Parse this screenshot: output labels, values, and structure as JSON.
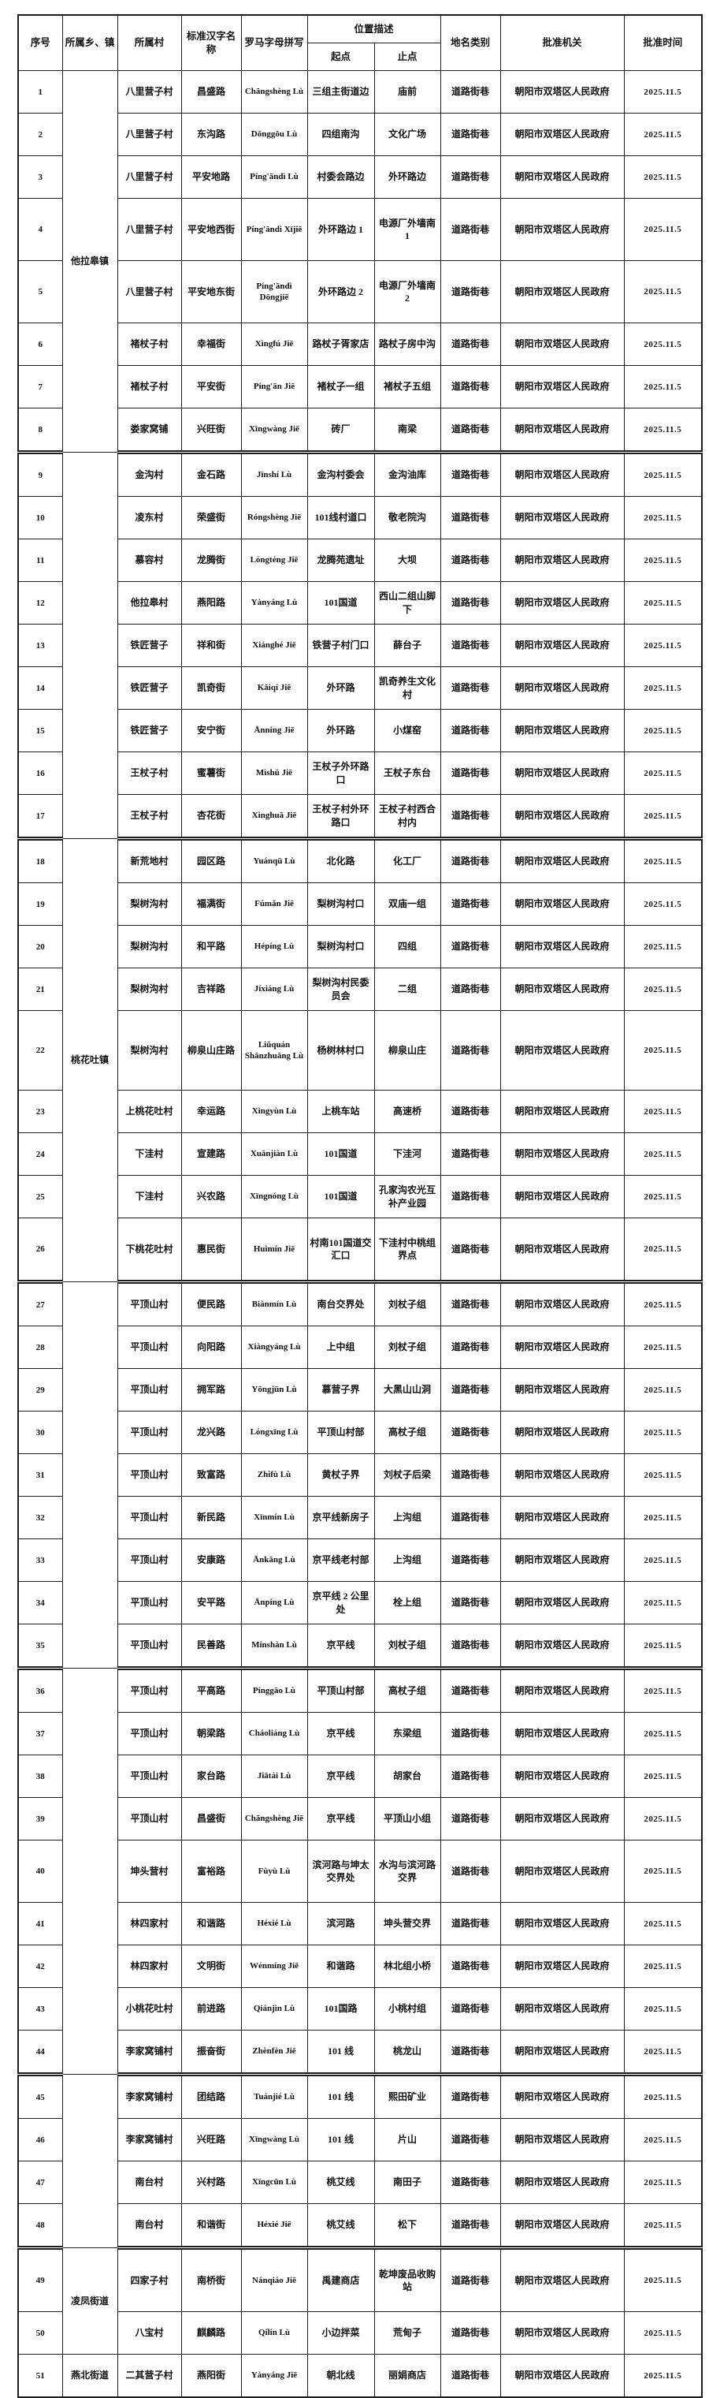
{
  "document": {
    "type": "place-name approval table",
    "category_value": "道路街巷",
    "authority_value": "朝阳市双塔区人民政府",
    "date_value": "2025.11.5"
  },
  "header": {
    "col_no": "序号",
    "col_township": "所属乡、镇",
    "col_village": "所属村",
    "col_name": "标准汉字名称",
    "col_pinyin": "罗马字母拼写",
    "col_location": "位置描述",
    "col_start": "起点",
    "col_end": "止点",
    "col_category": "地名类别",
    "col_authority": "批准机关",
    "col_date": "批准时间"
  },
  "townships": [
    {
      "label": "他拉皋镇",
      "from": 1,
      "to": 8
    },
    {
      "label": "",
      "from": 9,
      "to": 17
    },
    {
      "label": "桃花吐镇",
      "from": 18,
      "to": 26
    },
    {
      "label": "",
      "from": 27,
      "to": 35
    },
    {
      "label": "",
      "from": 36,
      "to": 44
    },
    {
      "label": "",
      "from": 45,
      "to": 48
    },
    {
      "label": "凌凤街道",
      "from": 49,
      "to": 50
    },
    {
      "label": "燕北街道",
      "from": 51,
      "to": 51
    }
  ],
  "group_breaks_after": [
    8,
    17,
    26,
    35,
    44,
    48
  ],
  "rows": [
    {
      "no": "1",
      "village": "八里营子村",
      "name": "昌盛路",
      "pinyin": "Chāngshèng Lù",
      "start": "三组主街道边",
      "end": "庙前",
      "category": "道路街巷",
      "authority": "朝阳市双塔区人民政府",
      "date": "2025.11.5"
    },
    {
      "no": "2",
      "village": "八里营子村",
      "name": "东沟路",
      "pinyin": "Dōnggōu Lù",
      "start": "四组南沟",
      "end": "文化广场",
      "category": "道路街巷",
      "authority": "朝阳市双塔区人民政府",
      "date": "2025.11.5"
    },
    {
      "no": "3",
      "village": "八里营子村",
      "name": "平安地路",
      "pinyin": "Píng'āndì Lù",
      "start": "村委会路边",
      "end": "外环路边",
      "category": "道路街巷",
      "authority": "朝阳市双塔区人民政府",
      "date": "2025.11.5"
    },
    {
      "no": "4",
      "village": "八里营子村",
      "name": "平安地西街",
      "pinyin": "Píng'āndì Xījiē",
      "start": "外环路边 1",
      "end": "电源厂外墙南 1",
      "category": "道路街巷",
      "authority": "朝阳市双塔区人民政府",
      "date": "2025.11.5"
    },
    {
      "no": "5",
      "village": "八里营子村",
      "name": "平安地东街",
      "pinyin": "Píng'āndì Dōngjiē",
      "start": "外环路边 2",
      "end": "电源厂外墙南 2",
      "category": "道路街巷",
      "authority": "朝阳市双塔区人民政府",
      "date": "2025.11.5"
    },
    {
      "no": "6",
      "village": "褚杖子村",
      "name": "幸福街",
      "pinyin": "Xìngfú Jiē",
      "start": "路杖子胥家店",
      "end": "路杖子房中沟",
      "category": "道路街巷",
      "authority": "朝阳市双塔区人民政府",
      "date": "2025.11.5"
    },
    {
      "no": "7",
      "village": "褚杖子村",
      "name": "平安街",
      "pinyin": "Píng'ān Jiē",
      "start": "褚杖子一组",
      "end": "褚杖子五组",
      "category": "道路街巷",
      "authority": "朝阳市双塔区人民政府",
      "date": "2025.11.5"
    },
    {
      "no": "8",
      "village": "娄家窝铺",
      "name": "兴旺街",
      "pinyin": "Xīngwàng Jiē",
      "start": "砖厂",
      "end": "南梁",
      "category": "道路街巷",
      "authority": "朝阳市双塔区人民政府",
      "date": "2025.11.5"
    },
    {
      "no": "9",
      "village": "金沟村",
      "name": "金石路",
      "pinyin": "Jīnshí Lù",
      "start": "金沟村委会",
      "end": "金沟油库",
      "category": "道路街巷",
      "authority": "朝阳市双塔区人民政府",
      "date": "2025.11.5"
    },
    {
      "no": "10",
      "village": "凌东村",
      "name": "荣盛街",
      "pinyin": "Róngshèng Jiē",
      "start": "101线村道口",
      "end": "敬老院沟",
      "category": "道路街巷",
      "authority": "朝阳市双塔区人民政府",
      "date": "2025.11.5"
    },
    {
      "no": "11",
      "village": "慕容村",
      "name": "龙腾街",
      "pinyin": "Lóngténg Jiē",
      "start": "龙腾苑遗址",
      "end": "大坝",
      "category": "道路街巷",
      "authority": "朝阳市双塔区人民政府",
      "date": "2025.11.5"
    },
    {
      "no": "12",
      "village": "他拉皋村",
      "name": "燕阳路",
      "pinyin": "Yànyáng Lù",
      "start": "101国道",
      "end": "西山二组山脚下",
      "category": "道路街巷",
      "authority": "朝阳市双塔区人民政府",
      "date": "2025.11.5"
    },
    {
      "no": "13",
      "village": "铁匠营子",
      "name": "祥和街",
      "pinyin": "Xiánghé Jiē",
      "start": "铁营子村门口",
      "end": "薛台子",
      "category": "道路街巷",
      "authority": "朝阳市双塔区人民政府",
      "date": "2025.11.5"
    },
    {
      "no": "14",
      "village": "铁匠营子",
      "name": "凯奇街",
      "pinyin": "Kǎiqí Jiē",
      "start": "外环路",
      "end": "凯奇养生文化村",
      "category": "道路街巷",
      "authority": "朝阳市双塔区人民政府",
      "date": "2025.11.5"
    },
    {
      "no": "15",
      "village": "铁匠营子",
      "name": "安宁街",
      "pinyin": "Ānníng Jiē",
      "start": "外环路",
      "end": "小煤窑",
      "category": "道路街巷",
      "authority": "朝阳市双塔区人民政府",
      "date": "2025.11.5"
    },
    {
      "no": "16",
      "village": "王杖子村",
      "name": "蜜薯街",
      "pinyin": "Mìshǔ Jiē",
      "start": "王杖子外环路口",
      "end": "王杖子东台",
      "category": "道路街巷",
      "authority": "朝阳市双塔区人民政府",
      "date": "2025.11.5"
    },
    {
      "no": "17",
      "village": "王杖子村",
      "name": "杏花街",
      "pinyin": "Xìnghuā Jiē",
      "start": "王杖子村外环路口",
      "end": "王杖子村西合村内",
      "category": "道路街巷",
      "authority": "朝阳市双塔区人民政府",
      "date": "2025.11.5"
    },
    {
      "no": "18",
      "village": "新荒地村",
      "name": "园区路",
      "pinyin": "Yuánqū Lù",
      "start": "北化路",
      "end": "化工厂",
      "category": "道路街巷",
      "authority": "朝阳市双塔区人民政府",
      "date": "2025.11.5"
    },
    {
      "no": "19",
      "village": "梨树沟村",
      "name": "福满街",
      "pinyin": "Fúmǎn Jiē",
      "start": "梨树沟村口",
      "end": "双庙一组",
      "category": "道路街巷",
      "authority": "朝阳市双塔区人民政府",
      "date": "2025.11.5"
    },
    {
      "no": "20",
      "village": "梨树沟村",
      "name": "和平路",
      "pinyin": "Hépíng Lù",
      "start": "梨树沟村口",
      "end": "四组",
      "category": "道路街巷",
      "authority": "朝阳市双塔区人民政府",
      "date": "2025.11.5"
    },
    {
      "no": "21",
      "village": "梨树沟村",
      "name": "吉祥路",
      "pinyin": "Jíxiáng Lù",
      "start": "梨树沟村民委员会",
      "end": "二组",
      "category": "道路街巷",
      "authority": "朝阳市双塔区人民政府",
      "date": "2025.11.5"
    },
    {
      "no": "22",
      "village": "梨树沟村",
      "name": "柳泉山庄路",
      "pinyin": "Liǔquán Shānzhuāng Lù",
      "start": "杨树林村口",
      "end": "柳泉山庄",
      "category": "道路街巷",
      "authority": "朝阳市双塔区人民政府",
      "date": "2025.11.5"
    },
    {
      "no": "23",
      "village": "上桃花吐村",
      "name": "幸运路",
      "pinyin": "Xìngyùn Lù",
      "start": "上桃车站",
      "end": "高速桥",
      "category": "道路街巷",
      "authority": "朝阳市双塔区人民政府",
      "date": "2025.11.5"
    },
    {
      "no": "24",
      "village": "下洼村",
      "name": "宣建路",
      "pinyin": "Xuānjiàn Lù",
      "start": "101国道",
      "end": "下洼河",
      "category": "道路街巷",
      "authority": "朝阳市双塔区人民政府",
      "date": "2025.11.5"
    },
    {
      "no": "25",
      "village": "下洼村",
      "name": "兴农路",
      "pinyin": "Xīngnóng Lù",
      "start": "101国道",
      "end": "孔家沟农光互补产业园",
      "category": "道路街巷",
      "authority": "朝阳市双塔区人民政府",
      "date": "2025.11.5"
    },
    {
      "no": "26",
      "village": "下桃花吐村",
      "name": "惠民街",
      "pinyin": "Huìmín Jiē",
      "start": "村南101国道交汇口",
      "end": "下洼村中桃组界点",
      "category": "道路街巷",
      "authority": "朝阳市双塔区人民政府",
      "date": "2025.11.5"
    },
    {
      "no": "27",
      "village": "平顶山村",
      "name": "便民路",
      "pinyin": "Biànmín Lù",
      "start": "南台交界处",
      "end": "刘杖子组",
      "category": "道路街巷",
      "authority": "朝阳市双塔区人民政府",
      "date": "2025.11.5"
    },
    {
      "no": "28",
      "village": "平顶山村",
      "name": "向阳路",
      "pinyin": "Xiàngyáng Lù",
      "start": "上中组",
      "end": "刘杖子组",
      "category": "道路街巷",
      "authority": "朝阳市双塔区人民政府",
      "date": "2025.11.5"
    },
    {
      "no": "29",
      "village": "平顶山村",
      "name": "拥军路",
      "pinyin": "Yōngjūn Lù",
      "start": "慕营子界",
      "end": "大黑山山洞",
      "category": "道路街巷",
      "authority": "朝阳市双塔区人民政府",
      "date": "2025.11.5"
    },
    {
      "no": "30",
      "village": "平顶山村",
      "name": "龙兴路",
      "pinyin": "Lóngxīng Lù",
      "start": "平顶山村部",
      "end": "高杖子组",
      "category": "道路街巷",
      "authority": "朝阳市双塔区人民政府",
      "date": "2025.11.5"
    },
    {
      "no": "31",
      "village": "平顶山村",
      "name": "致富路",
      "pinyin": "Zhìfù Lù",
      "start": "黄杖子界",
      "end": "刘杖子后梁",
      "category": "道路街巷",
      "authority": "朝阳市双塔区人民政府",
      "date": "2025.11.5"
    },
    {
      "no": "32",
      "village": "平顶山村",
      "name": "新民路",
      "pinyin": "Xīnmín Lù",
      "start": "京平线新房子",
      "end": "上沟组",
      "category": "道路街巷",
      "authority": "朝阳市双塔区人民政府",
      "date": "2025.11.5"
    },
    {
      "no": "33",
      "village": "平顶山村",
      "name": "安康路",
      "pinyin": "Ānkāng Lù",
      "start": "京平线老村部",
      "end": "上沟组",
      "category": "道路街巷",
      "authority": "朝阳市双塔区人民政府",
      "date": "2025.11.5"
    },
    {
      "no": "34",
      "village": "平顶山村",
      "name": "安平路",
      "pinyin": "Ānpíng Lù",
      "start": "京平线 2 公里处",
      "end": "栓上组",
      "category": "道路街巷",
      "authority": "朝阳市双塔区人民政府",
      "date": "2025.11.5"
    },
    {
      "no": "35",
      "village": "平顶山村",
      "name": "民善路",
      "pinyin": "Mínshàn Lù",
      "start": "京平线",
      "end": "刘杖子组",
      "category": "道路街巷",
      "authority": "朝阳市双塔区人民政府",
      "date": "2025.11.5"
    },
    {
      "no": "36",
      "village": "平顶山村",
      "name": "平高路",
      "pinyin": "Pínggāo Lù",
      "start": "平顶山村部",
      "end": "高杖子组",
      "category": "道路街巷",
      "authority": "朝阳市双塔区人民政府",
      "date": "2025.11.5"
    },
    {
      "no": "37",
      "village": "平顶山村",
      "name": "朝梁路",
      "pinyin": "Cháoliáng Lù",
      "start": "京平线",
      "end": "东梁组",
      "category": "道路街巷",
      "authority": "朝阳市双塔区人民政府",
      "date": "2025.11.5"
    },
    {
      "no": "38",
      "village": "平顶山村",
      "name": "家台路",
      "pinyin": "Jiātái Lù",
      "start": "京平线",
      "end": "胡家台",
      "category": "道路街巷",
      "authority": "朝阳市双塔区人民政府",
      "date": "2025.11.5"
    },
    {
      "no": "39",
      "village": "平顶山村",
      "name": "昌盛街",
      "pinyin": "Chāngshèng Jiē",
      "start": "京平线",
      "end": "平顶山小组",
      "category": "道路街巷",
      "authority": "朝阳市双塔区人民政府",
      "date": "2025.11.5"
    },
    {
      "no": "40",
      "village": "坤头营村",
      "name": "富裕路",
      "pinyin": "Fùyù Lù",
      "start": "滨河路与坤太交界处",
      "end": "水沟与滨河路交界",
      "category": "道路街巷",
      "authority": "朝阳市双塔区人民政府",
      "date": "2025.11.5"
    },
    {
      "no": "41",
      "village": "林四家村",
      "name": "和谐路",
      "pinyin": "Héxié Lù",
      "start": "滨河路",
      "end": "坤头营交界",
      "category": "道路街巷",
      "authority": "朝阳市双塔区人民政府",
      "date": "2025.11.5"
    },
    {
      "no": "42",
      "village": "林四家村",
      "name": "文明街",
      "pinyin": "Wénmíng Jiē",
      "start": "和谐路",
      "end": "林北组小桥",
      "category": "道路街巷",
      "authority": "朝阳市双塔区人民政府",
      "date": "2025.11.5"
    },
    {
      "no": "43",
      "village": "小桃花吐村",
      "name": "前进路",
      "pinyin": "Qiánjìn Lù",
      "start": "101国路",
      "end": "小桃村组",
      "category": "道路街巷",
      "authority": "朝阳市双塔区人民政府",
      "date": "2025.11.5"
    },
    {
      "no": "44",
      "village": "李家窝铺村",
      "name": "振奋街",
      "pinyin": "Zhènfèn Jiē",
      "start": "101 线",
      "end": "桃龙山",
      "category": "道路街巷",
      "authority": "朝阳市双塔区人民政府",
      "date": "2025.11.5"
    },
    {
      "no": "45",
      "village": "李家窝铺村",
      "name": "团结路",
      "pinyin": "Tuánjié Lù",
      "start": "101 线",
      "end": "熙田矿业",
      "category": "道路街巷",
      "authority": "朝阳市双塔区人民政府",
      "date": "2025.11.5"
    },
    {
      "no": "46",
      "village": "李家窝铺村",
      "name": "兴旺路",
      "pinyin": "Xīngwàng Lù",
      "start": "101 线",
      "end": "片山",
      "category": "道路街巷",
      "authority": "朝阳市双塔区人民政府",
      "date": "2025.11.5"
    },
    {
      "no": "47",
      "village": "南台村",
      "name": "兴村路",
      "pinyin": "Xīngcūn Lù",
      "start": "桃艾线",
      "end": "南田子",
      "category": "道路街巷",
      "authority": "朝阳市双塔区人民政府",
      "date": "2025.11.5"
    },
    {
      "no": "48",
      "village": "南台村",
      "name": "和谐街",
      "pinyin": "Héxié Jiē",
      "start": "桃艾线",
      "end": "松下",
      "category": "道路街巷",
      "authority": "朝阳市双塔区人民政府",
      "date": "2025.11.5"
    },
    {
      "no": "49",
      "village": "四家子村",
      "name": "南桥街",
      "pinyin": "Nánqiáo Jiē",
      "start": "禹建商店",
      "end": "乾坤废品收购站",
      "category": "道路街巷",
      "authority": "朝阳市双塔区人民政府",
      "date": "2025.11.5"
    },
    {
      "no": "50",
      "village": "八宝村",
      "name": "麒麟路",
      "pinyin": "Qílín Lù",
      "start": "小边拌菜",
      "end": "荒甸子",
      "category": "道路街巷",
      "authority": "朝阳市双塔区人民政府",
      "date": "2025.11.5"
    },
    {
      "no": "51",
      "village": "二其营子村",
      "name": "燕阳街",
      "pinyin": "Yànyáng Jiē",
      "start": "朝北线",
      "end": "丽娟商店",
      "category": "道路街巷",
      "authority": "朝阳市双塔区人民政府",
      "date": "2025.11.5"
    }
  ]
}
